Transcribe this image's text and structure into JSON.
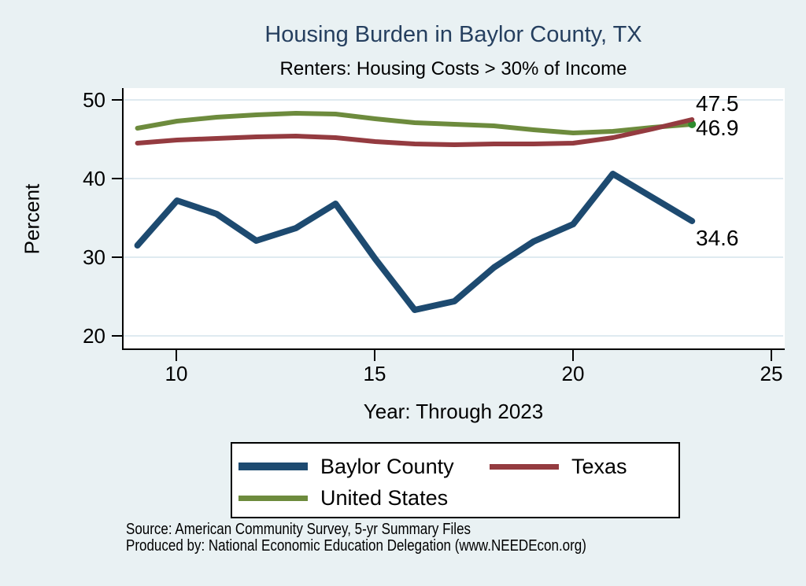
{
  "title": "Housing Burden in Baylor County, TX",
  "subtitle": "Renters: Housing Costs > 30% of Income",
  "colors": {
    "background": "#e9f1f3",
    "title_text": "#253f5f",
    "plot_background": "#ffffff",
    "gridline": "#dfeaf0",
    "baylor_blue": "#1d4a70",
    "texas_maroon": "#943b40",
    "us_olive": "#6d8b3d",
    "end_dot_green": "#2e8b2e"
  },
  "y_axis": {
    "label": "Percent",
    "ticks": [
      50,
      40,
      30,
      20
    ]
  },
  "x_axis": {
    "label": "Year: Through 2023",
    "ticks": [
      10,
      15,
      20,
      25
    ]
  },
  "legend": {
    "items": [
      {
        "label": "Baylor County",
        "color": "#1d4a70"
      },
      {
        "label": "Texas",
        "color": "#943b40"
      },
      {
        "label": "United States",
        "color": "#6d8b3d"
      }
    ]
  },
  "source_line1": "Source: American Community Survey, 5-yr Summary Files",
  "source_line2": "Produced by: National Economic Education Delegation (www.NEEDEcon.org)",
  "chart_data": {
    "type": "line",
    "title": "Housing Burden in Baylor County, TX",
    "subtitle": "Renters: Housing Costs > 30% of Income",
    "xlabel": "Year: Through 2023",
    "ylabel": "Percent",
    "x": [
      9,
      10,
      11,
      12,
      13,
      14,
      15,
      16,
      17,
      18,
      19,
      20,
      21,
      22,
      23
    ],
    "series": [
      {
        "id": "baylor",
        "name": "Baylor County",
        "color": "#1d4a70",
        "values": [
          31.5,
          37.2,
          35.5,
          32.1,
          33.7,
          36.8,
          29.8,
          23.3,
          24.4,
          28.7,
          32.0,
          34.2,
          40.6,
          37.6,
          34.6
        ],
        "end_label": "34.6"
      },
      {
        "id": "texas",
        "name": "Texas",
        "color": "#943b40",
        "values": [
          44.5,
          44.9,
          45.1,
          45.3,
          45.4,
          45.2,
          44.7,
          44.4,
          44.3,
          44.4,
          44.4,
          44.5,
          45.2,
          46.3,
          47.5
        ],
        "end_label": "47.5"
      },
      {
        "id": "us",
        "name": "United States",
        "color": "#6d8b3d",
        "values": [
          46.4,
          47.3,
          47.8,
          48.1,
          48.3,
          48.2,
          47.6,
          47.1,
          46.9,
          46.7,
          46.2,
          45.8,
          46.0,
          46.5,
          46.9
        ],
        "end_label": "46.9"
      }
    ],
    "xlim": [
      8.65,
      25.3
    ],
    "ylim": [
      18.2,
      51.5
    ],
    "x_ticks": [
      10,
      15,
      20,
      25
    ],
    "y_ticks": [
      20,
      30,
      40,
      50
    ],
    "grid": "horizontal",
    "legend_position": "bottom",
    "end_point_marker": {
      "series": "us",
      "color": "#2e8b2e"
    }
  }
}
